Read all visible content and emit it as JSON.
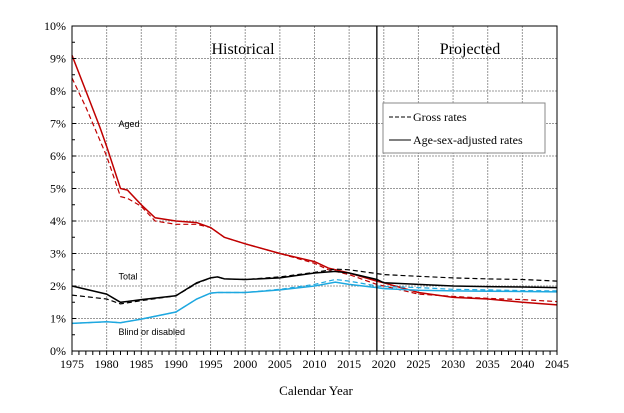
{
  "chart_data": {
    "type": "line",
    "title": "",
    "xlabel": "Calendar Year",
    "ylabel": "",
    "xlim": [
      1975,
      2045
    ],
    "ylim": [
      0,
      10
    ],
    "yunit": "%",
    "grid": true,
    "xticks": [
      1975,
      1980,
      1985,
      1990,
      1995,
      2000,
      2005,
      2010,
      2015,
      2020,
      2025,
      2030,
      2035,
      2040,
      2045
    ],
    "yticks": [
      0,
      1,
      2,
      3,
      4,
      5,
      6,
      7,
      8,
      9,
      10
    ],
    "divider_year": 2019,
    "region_labels": {
      "historical": "Historical",
      "projected": "Projected"
    },
    "legend": {
      "position": "upper-right",
      "entries": [
        {
          "label": "Gross rates",
          "style": "dashed"
        },
        {
          "label": "Age-sex-adjusted rates",
          "style": "solid"
        }
      ]
    },
    "series": [
      {
        "name": "Aged",
        "kind": "adjusted",
        "color": "#c00000",
        "x": [
          1975,
          1977,
          1979,
          1980,
          1982,
          1983,
          1985,
          1987,
          1990,
          1993,
          1995,
          1997,
          2000,
          2005,
          2010,
          2012,
          2015,
          2019,
          2020,
          2025,
          2030,
          2035,
          2040,
          2045
        ],
        "values": [
          9.1,
          8.0,
          6.9,
          6.3,
          5.0,
          4.95,
          4.5,
          4.1,
          4.0,
          3.95,
          3.8,
          3.5,
          3.3,
          3.0,
          2.75,
          2.55,
          2.4,
          2.15,
          2.1,
          1.8,
          1.65,
          1.6,
          1.5,
          1.42
        ]
      },
      {
        "name": "Aged",
        "kind": "gross",
        "color": "#c00000",
        "x": [
          1975,
          1977,
          1979,
          1980,
          1982,
          1983,
          1985,
          1987,
          1990,
          1993,
          1995,
          1997,
          2000,
          2005,
          2010,
          2012,
          2015,
          2019,
          2020,
          2025,
          2030,
          2035,
          2040,
          2045
        ],
        "values": [
          8.4,
          7.5,
          6.5,
          6.0,
          4.75,
          4.7,
          4.45,
          4.0,
          3.9,
          3.9,
          3.8,
          3.5,
          3.3,
          3.0,
          2.7,
          2.5,
          2.35,
          2.05,
          2.0,
          1.75,
          1.68,
          1.62,
          1.58,
          1.52
        ]
      },
      {
        "name": "Total",
        "kind": "adjusted",
        "color": "#000000",
        "x": [
          1975,
          1980,
          1982,
          1985,
          1990,
          1993,
          1995,
          1996,
          1997,
          2000,
          2005,
          2010,
          2013,
          2015,
          2019,
          2020,
          2025,
          2030,
          2035,
          2040,
          2045
        ],
        "values": [
          2.0,
          1.75,
          1.5,
          1.58,
          1.7,
          2.1,
          2.25,
          2.28,
          2.22,
          2.2,
          2.25,
          2.4,
          2.45,
          2.4,
          2.2,
          2.1,
          2.05,
          2.0,
          1.98,
          1.97,
          1.95
        ]
      },
      {
        "name": "Total",
        "kind": "gross",
        "color": "#000000",
        "x": [
          1975,
          1980,
          1982,
          1985,
          1990,
          1993,
          1995,
          1996,
          1997,
          2000,
          2005,
          2010,
          2013,
          2015,
          2019,
          2020,
          2025,
          2030,
          2035,
          2040,
          2045
        ],
        "values": [
          1.72,
          1.6,
          1.45,
          1.55,
          1.7,
          2.08,
          2.25,
          2.28,
          2.22,
          2.2,
          2.28,
          2.42,
          2.52,
          2.5,
          2.38,
          2.35,
          2.3,
          2.25,
          2.22,
          2.2,
          2.15
        ]
      },
      {
        "name": "Blind or disabled",
        "kind": "adjusted",
        "color": "#1ea8e0",
        "x": [
          1975,
          1980,
          1982,
          1985,
          1990,
          1993,
          1995,
          1996,
          2000,
          2005,
          2010,
          2013,
          2015,
          2019,
          2020,
          2025,
          2030,
          2035,
          2040,
          2045
        ],
        "values": [
          0.85,
          0.9,
          0.87,
          0.98,
          1.2,
          1.6,
          1.78,
          1.8,
          1.8,
          1.88,
          2.0,
          2.12,
          2.05,
          1.95,
          1.92,
          1.87,
          1.85,
          1.84,
          1.83,
          1.82
        ]
      },
      {
        "name": "Blind or disabled",
        "kind": "gross",
        "color": "#1ea8e0",
        "x": [
          1975,
          1980,
          1982,
          1985,
          1990,
          1993,
          1995,
          1996,
          2000,
          2005,
          2010,
          2013,
          2015,
          2019,
          2020,
          2025,
          2030,
          2035,
          2040,
          2045
        ],
        "values": [
          0.85,
          0.9,
          0.87,
          0.98,
          1.2,
          1.6,
          1.78,
          1.8,
          1.8,
          1.9,
          2.05,
          2.2,
          2.15,
          2.0,
          1.98,
          1.95,
          1.9,
          1.88,
          1.86,
          1.85
        ]
      }
    ],
    "annotations": [
      {
        "text": "Aged",
        "x": 1982,
        "y": 6.9
      },
      {
        "text": "Total",
        "x": 1982,
        "y": 2.2
      },
      {
        "text": "Blind or disabled",
        "x": 1982,
        "y": 0.5
      }
    ]
  }
}
